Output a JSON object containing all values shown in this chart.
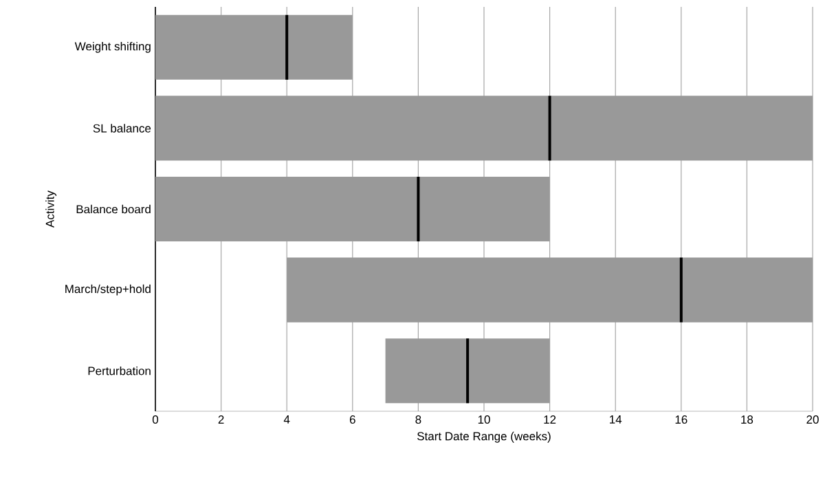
{
  "chart_data": {
    "type": "box",
    "orientation": "horizontal",
    "xlabel": "Start Date Range (weeks)",
    "ylabel": "Activity",
    "categories": [
      "Weight shifting",
      "SL balance",
      "Balance board",
      "March/step+hold",
      "Perturbation"
    ],
    "color": "#999999",
    "boxes": [
      {
        "low": 0,
        "q1": 0,
        "median": 4,
        "q3": 6,
        "high": 6
      },
      {
        "low": 0,
        "q1": 0,
        "median": 12,
        "q3": 20,
        "high": 20
      },
      {
        "low": 0,
        "q1": 0,
        "median": 8,
        "q3": 12,
        "high": 12
      },
      {
        "low": 4,
        "q1": 4,
        "median": 16,
        "q3": 20,
        "high": 20
      },
      {
        "low": 7,
        "q1": 7,
        "median": 9.5,
        "q3": 12,
        "high": 12
      }
    ],
    "xlim": [
      0,
      20
    ],
    "xticks": [
      0,
      2,
      4,
      6,
      8,
      10,
      12,
      14,
      16,
      18,
      20
    ],
    "grid": "x"
  }
}
